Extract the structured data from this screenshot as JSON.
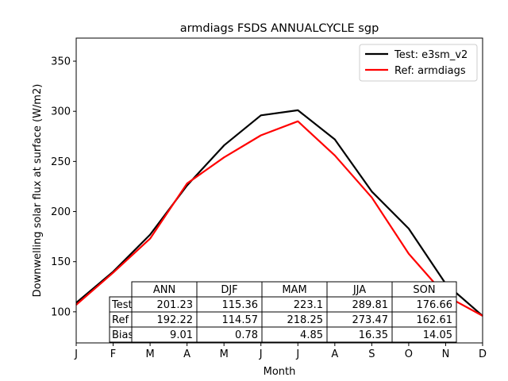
{
  "chart_data": {
    "type": "line",
    "title": "armdiags FSDS ANNUALCYCLE sgp",
    "xlabel": "Month",
    "ylabel": "Downwelling solar flux at surface (W/m2)",
    "categories": [
      "J",
      "F",
      "M",
      "A",
      "M",
      "J",
      "J",
      "A",
      "S",
      "O",
      "N",
      "D"
    ],
    "ylim": [
      69,
      373
    ],
    "yticks": [
      100,
      150,
      200,
      250,
      300,
      350
    ],
    "grid": false,
    "legend_position": "top-right",
    "series": [
      {
        "name": "Test: e3sm_v2",
        "color": "#000000",
        "values": [
          109,
          140,
          177,
          226,
          266,
          296,
          301,
          272,
          220,
          183,
          128,
          96
        ]
      },
      {
        "name": "Ref: armdiags",
        "color": "#ff0000",
        "values": [
          107,
          139,
          173,
          228,
          254,
          276,
          290,
          256,
          214,
          158,
          116,
          96
        ]
      }
    ],
    "table": {
      "columns": [
        "ANN",
        "DJF",
        "MAM",
        "JJA",
        "SON"
      ],
      "rows": [
        {
          "label": "Test",
          "values": [
            "201.23",
            "115.36",
            "223.1",
            "289.81",
            "176.66"
          ]
        },
        {
          "label": "Ref",
          "values": [
            "192.22",
            "114.57",
            "218.25",
            "273.47",
            "162.61"
          ]
        },
        {
          "label": "Bias",
          "values": [
            "9.01",
            "0.78",
            "4.85",
            "16.35",
            "14.05"
          ]
        }
      ]
    }
  }
}
